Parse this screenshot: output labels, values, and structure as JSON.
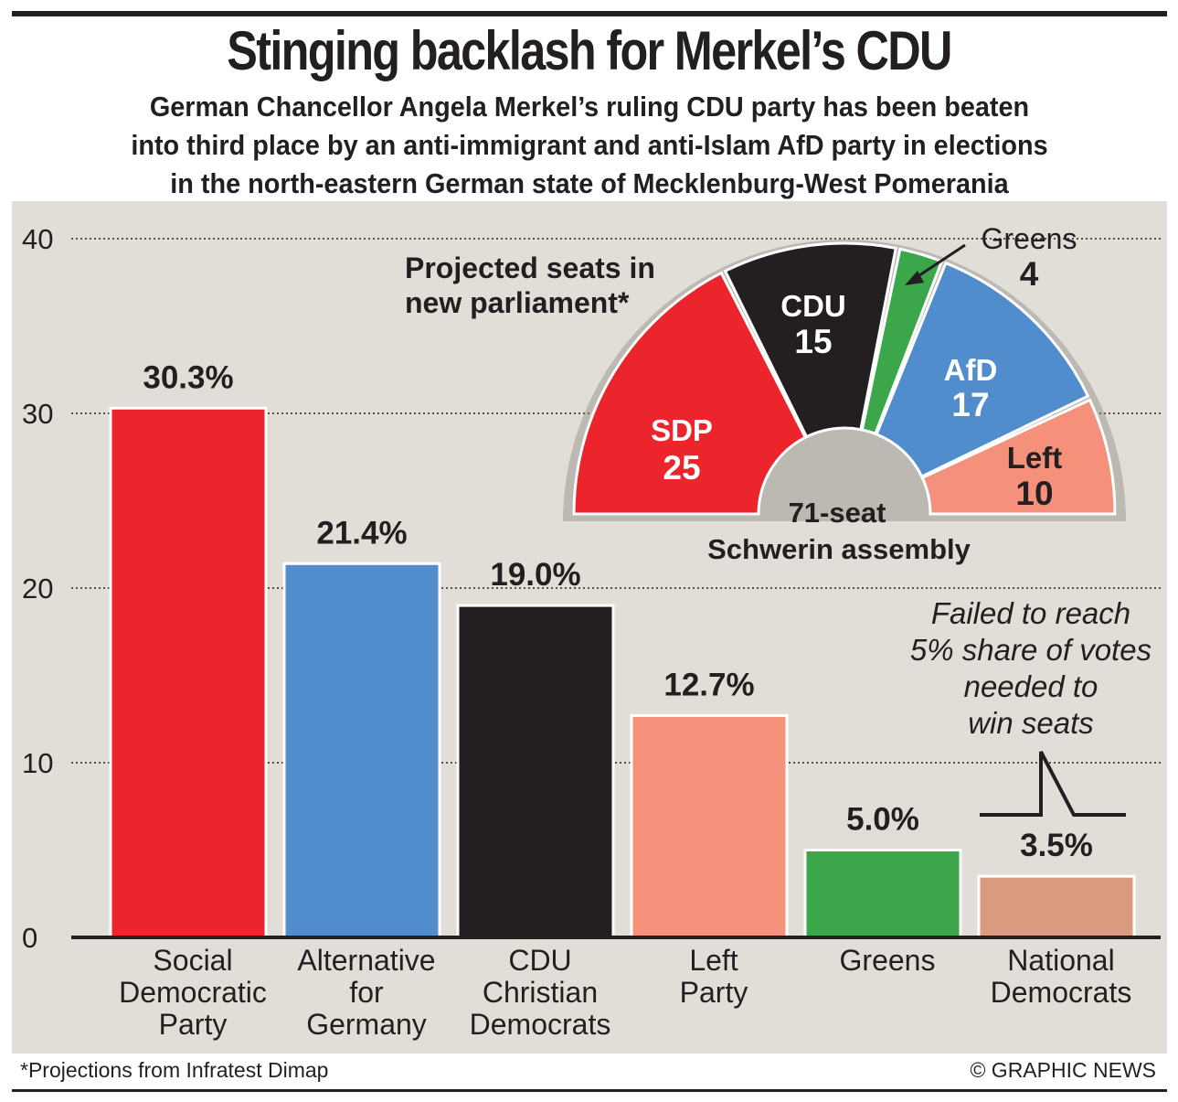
{
  "headline": "Stinging backlash for Merkel’s CDU",
  "subtitle_lines": [
    "German Chancellor Angela Merkel’s ruling CDU party has been beaten",
    "into third place by an anti-immigrant and anti-Islam AfD party in elections",
    "in the north-eastern German state of Mecklenburg-West Pomerania"
  ],
  "chart_data": [
    {
      "type": "bar",
      "title": "",
      "categories": [
        [
          "Social",
          "Democratic",
          "Party"
        ],
        [
          "Alternative",
          "for",
          "Germany"
        ],
        [
          "CDU",
          "Christian",
          "Democrats"
        ],
        [
          "Left",
          "Party"
        ],
        [
          "Greens"
        ],
        [
          "National",
          "Democrats"
        ]
      ],
      "values": [
        30.3,
        21.4,
        19.0,
        12.7,
        5.0,
        3.5
      ],
      "value_labels": [
        "30.3%",
        "21.4%",
        "19.0%",
        "12.7%",
        "5.0%",
        "3.5%"
      ],
      "colors": [
        "#ec242c",
        "#518dcc",
        "#231f20",
        "#f5907a",
        "#3ba64a",
        "#d99a80"
      ],
      "ylim": [
        0,
        40
      ],
      "yticks": [
        "0",
        "10",
        "20",
        "30",
        "40"
      ],
      "grid": true,
      "threshold_note": [
        "Failed to reach",
        "5% share of votes",
        "needed to",
        "win seats"
      ]
    },
    {
      "type": "pie",
      "title": [
        "Projected seats in",
        "new parliament*"
      ],
      "center_label": [
        "71-seat",
        "Schwerin assembly"
      ],
      "total": 71,
      "slices": [
        {
          "name": "SDP",
          "value": 25,
          "color": "#ec242c",
          "text_color": "#ffffff"
        },
        {
          "name": "CDU",
          "value": 15,
          "color": "#231f20",
          "text_color": "#ffffff"
        },
        {
          "name": "Greens",
          "value": 4,
          "color": "#3ba64a",
          "text_color": "#231f20"
        },
        {
          "name": "AfD",
          "value": 17,
          "color": "#518dcc",
          "text_color": "#ffffff"
        },
        {
          "name": "Left",
          "value": 10,
          "color": "#f5907a",
          "text_color": "#231f20"
        }
      ]
    }
  ],
  "footer": {
    "note": "*Projections from Infratest Dimap",
    "credit": "© GRAPHIC NEWS"
  }
}
